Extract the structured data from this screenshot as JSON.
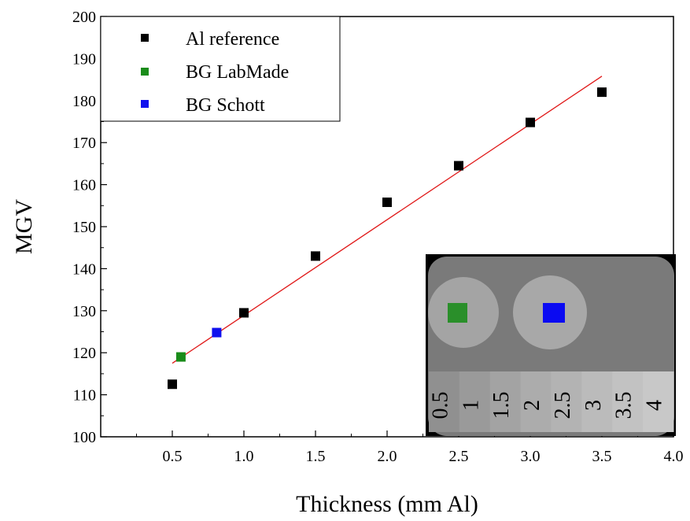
{
  "chart_data": {
    "type": "scatter",
    "xlabel": "Thickness (mm Al)",
    "ylabel": "MGV",
    "xlim": [
      0,
      4.0
    ],
    "ylim": [
      100,
      200
    ],
    "x_ticks": [
      "0.5",
      "1.0",
      "1.5",
      "2.0",
      "2.5",
      "3.0",
      "3.5",
      "4.0"
    ],
    "y_ticks": [
      "100",
      "110",
      "120",
      "130",
      "140",
      "150",
      "160",
      "170",
      "180",
      "190",
      "200"
    ],
    "legend_position": "top-left",
    "grid": false,
    "series": [
      {
        "name": "Al reference",
        "color": "#000000",
        "marker": "square",
        "points": [
          {
            "x": 0.5,
            "y": 112.5
          },
          {
            "x": 1.0,
            "y": 129.5
          },
          {
            "x": 1.5,
            "y": 143.0
          },
          {
            "x": 2.0,
            "y": 155.8
          },
          {
            "x": 2.5,
            "y": 164.5
          },
          {
            "x": 3.0,
            "y": 174.8
          },
          {
            "x": 3.5,
            "y": 182.0
          }
        ]
      },
      {
        "name": "BG LabMade",
        "color": "#1a8c1a",
        "marker": "square",
        "points": [
          {
            "x": 0.56,
            "y": 119.0
          }
        ]
      },
      {
        "name": "BG Schott",
        "color": "#1010ee",
        "marker": "square",
        "points": [
          {
            "x": 0.81,
            "y": 124.8
          }
        ]
      }
    ],
    "fit_line": {
      "color": "#e01818",
      "points": [
        {
          "x": 0.5,
          "y": 117.5
        },
        {
          "x": 3.5,
          "y": 185.8
        }
      ]
    },
    "inset": {
      "step_labels": [
        "0.5",
        "1",
        "1.5",
        "2",
        "2.5",
        "3",
        "3.5",
        "4"
      ],
      "step_shades": [
        "#909090",
        "#9a9a9a",
        "#a3a3a3",
        "#acacac",
        "#b3b3b3",
        "#bbbbbb",
        "#c2c2c2",
        "#c8c8c8"
      ],
      "sample_colors": [
        "#2a8f2a",
        "#0a0af2"
      ]
    }
  }
}
